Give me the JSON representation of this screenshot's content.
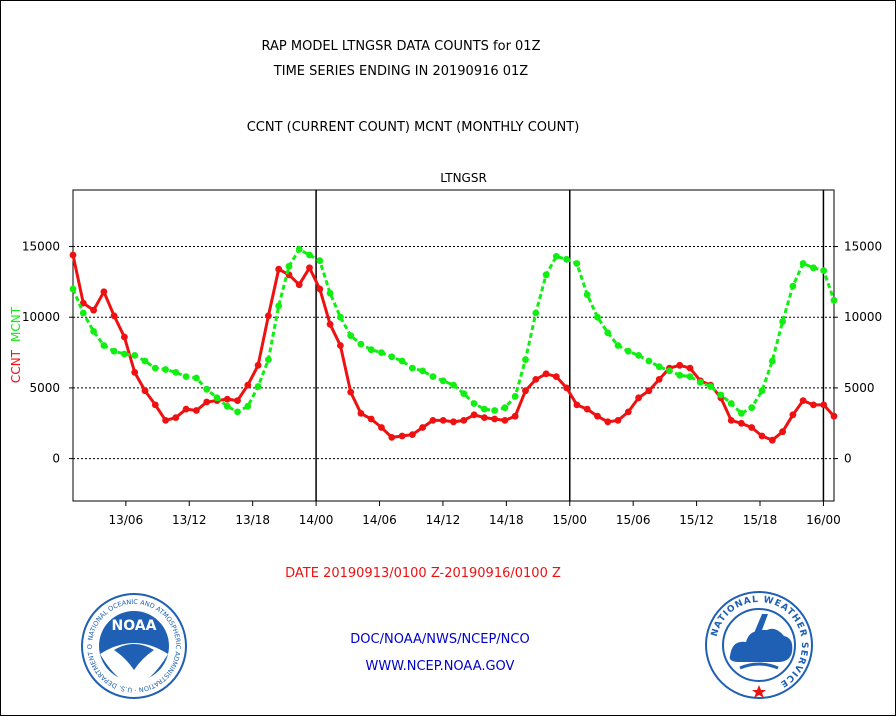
{
  "header": {
    "line1": "RAP MODEL LTNGSR DATA COUNTS for 01Z",
    "line2": "TIME SERIES ENDING IN 20190916 01Z",
    "line3": "CCNT (CURRENT COUNT) MCNT (MONTHLY COUNT)"
  },
  "footer": {
    "date_range": "DATE 20190913/0100 Z-20190916/0100 Z",
    "org": "DOC/NOAA/NWS/NCEP/NCO",
    "url": "WWW.NCEP.NOAA.GOV"
  },
  "logos": {
    "left": {
      "name": "NOAA",
      "ring_text": "NATIONAL OCEANIC AND ATMOSPHERIC ADMINISTRATION · U.S. DEPARTMENT OF COMMERCE",
      "color": "#1f5fb4"
    },
    "right": {
      "ring_text": "NATIONAL WEATHER SERVICE",
      "color": "#1f5fb4"
    }
  },
  "chart_data": {
    "type": "line",
    "title": "LTNGSR",
    "ylabel_series": [
      "CCNT",
      "MCNT"
    ],
    "ylim": [
      -3000,
      19000
    ],
    "yticks": [
      0,
      5000,
      10000,
      15000
    ],
    "x_hours_range": [
      0,
      72
    ],
    "x_ticks": [
      {
        "hour": 5,
        "label": "13/06"
      },
      {
        "hour": 11,
        "label": "13/12"
      },
      {
        "hour": 17,
        "label": "13/18"
      },
      {
        "hour": 23,
        "label": "14/00"
      },
      {
        "hour": 29,
        "label": "14/06"
      },
      {
        "hour": 35,
        "label": "14/12"
      },
      {
        "hour": 41,
        "label": "14/18"
      },
      {
        "hour": 47,
        "label": "15/00"
      },
      {
        "hour": 53,
        "label": "15/06"
      },
      {
        "hour": 59,
        "label": "15/12"
      },
      {
        "hour": 65,
        "label": "15/18"
      },
      {
        "hour": 71,
        "label": "16/00"
      }
    ],
    "day_lines_hours": [
      23,
      47,
      71
    ],
    "grid_y": true,
    "colors": {
      "CCNT": "#ee1111",
      "MCNT": "#11ee11",
      "title": "#0000cc",
      "footer_date": "#ee1111",
      "footer_text": "#0000cc"
    },
    "series": [
      {
        "name": "CCNT",
        "values": [
          14400,
          11000,
          10500,
          11800,
          10100,
          8600,
          6100,
          4800,
          3800,
          2700,
          2900,
          3500,
          3400,
          4000,
          4100,
          4200,
          4100,
          5200,
          6600,
          10100,
          13400,
          13000,
          12300,
          13500,
          12000,
          9500,
          8000,
          4700,
          3200,
          2800,
          2200,
          1500,
          1600,
          1700,
          2200,
          2700,
          2700,
          2600,
          2700,
          3100,
          2900,
          2800,
          2700,
          3000,
          4800,
          5600,
          6000,
          5800,
          5000,
          3800,
          3500,
          3000,
          2600,
          2700,
          3300,
          4300,
          4800,
          5600,
          6400,
          6600,
          6400,
          5500,
          5200,
          4300,
          2700,
          2500,
          2200,
          1600,
          1300,
          1900,
          3100,
          4100,
          3800,
          3800,
          3000
        ]
      },
      {
        "name": "MCNT",
        "values": [
          12000,
          10300,
          9000,
          8000,
          7600,
          7400,
          7300,
          6900,
          6400,
          6300,
          6100,
          5800,
          5700,
          4900,
          4300,
          3700,
          3300,
          3700,
          5100,
          7000,
          10800,
          13600,
          14800,
          14400,
          14000,
          11700,
          10000,
          8700,
          8100,
          7700,
          7500,
          7200,
          6900,
          6400,
          6200,
          5800,
          5500,
          5200,
          4600,
          3900,
          3500,
          3400,
          3600,
          4400,
          7000,
          10300,
          13000,
          14300,
          14100,
          13800,
          11600,
          10000,
          8900,
          8000,
          7600,
          7300,
          6900,
          6500,
          6200,
          5900,
          5800,
          5400,
          5100,
          4500,
          3900,
          3200,
          3600,
          4800,
          6900,
          9700,
          12200,
          13800,
          13500,
          13300,
          11200
        ]
      }
    ]
  }
}
